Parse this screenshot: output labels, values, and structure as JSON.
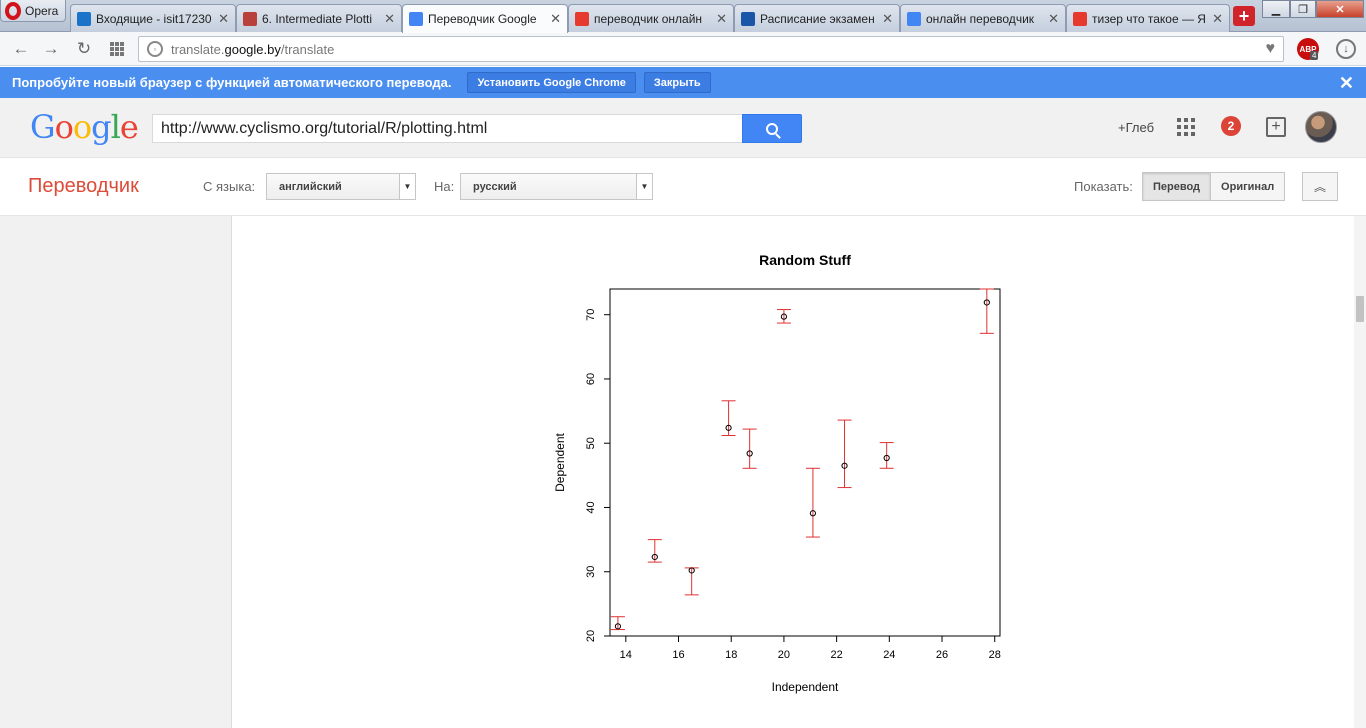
{
  "browser": {
    "opera_label": "Opera",
    "tabs": [
      {
        "title": "Входящие - isit17230",
        "icon": "mail-icon",
        "color": "#1a73c8"
      },
      {
        "title": "6. Intermediate Plotti",
        "icon": "link-icon",
        "color": "#b9413b"
      },
      {
        "title": "Переводчик Google",
        "icon": "google-translate-icon",
        "color": "#4285f4"
      },
      {
        "title": "переводчик онлайн",
        "icon": "yandex-icon",
        "color": "#e63a2e"
      },
      {
        "title": "Расписание экзамен",
        "icon": "schedule-site-icon",
        "color": "#1a56a8"
      },
      {
        "title": "онлайн переводчик",
        "icon": "google-g-icon",
        "color": "#4285f4"
      },
      {
        "title": "тизер что такое — Я",
        "icon": "yandex-icon",
        "color": "#e63a2e"
      }
    ],
    "url_prefix": "translate.",
    "url_domain": "google.by",
    "url_path": "/translate",
    "abp_label": "ABP",
    "abp_count": "4"
  },
  "infobar": {
    "text": "Попробуйте новый браузер с функцией автоматического перевода.",
    "install_label": "Установить Google Chrome",
    "close_label": "Закрыть"
  },
  "google": {
    "search_value": "http://www.cyclismo.org/tutorial/R/plotting.html",
    "user_label": "+Глеб",
    "notification_count": "2",
    "logo_letters": [
      {
        "ch": "G",
        "color": "#4285f4"
      },
      {
        "ch": "o",
        "color": "#ea4335"
      },
      {
        "ch": "o",
        "color": "#fbbc05"
      },
      {
        "ch": "g",
        "color": "#4285f4"
      },
      {
        "ch": "l",
        "color": "#34a853"
      },
      {
        "ch": "e",
        "color": "#ea4335"
      }
    ]
  },
  "translator": {
    "title": "Переводчик",
    "from_label": "С языка:",
    "from_value": "английский",
    "to_label": "На:",
    "to_value": "русский",
    "show_label": "Показать:",
    "translation_label": "Перевод",
    "original_label": "Оригинал"
  },
  "chart_data": {
    "type": "scatter",
    "title": "Random Stuff",
    "xlabel": "Independent",
    "ylabel": "Dependent",
    "xlim": [
      13.4,
      28.2
    ],
    "ylim": [
      20,
      74
    ],
    "xticks": [
      14,
      16,
      18,
      20,
      22,
      24,
      26,
      28
    ],
    "yticks": [
      20,
      30,
      40,
      50,
      60,
      70
    ],
    "point_color": "#000000",
    "errorbar_color": "#e03030",
    "points": [
      {
        "x": 13.7,
        "y": 21.5,
        "lo": 21.0,
        "hi": 23.0
      },
      {
        "x": 15.1,
        "y": 32.3,
        "lo": 31.5,
        "hi": 35.0
      },
      {
        "x": 16.5,
        "y": 30.2,
        "lo": 26.4,
        "hi": 30.6
      },
      {
        "x": 17.9,
        "y": 52.4,
        "lo": 51.2,
        "hi": 56.6
      },
      {
        "x": 18.7,
        "y": 48.4,
        "lo": 46.1,
        "hi": 52.2
      },
      {
        "x": 20.0,
        "y": 69.7,
        "lo": 68.7,
        "hi": 70.8
      },
      {
        "x": 21.1,
        "y": 39.1,
        "lo": 35.4,
        "hi": 46.1
      },
      {
        "x": 22.3,
        "y": 46.5,
        "lo": 43.1,
        "hi": 53.6
      },
      {
        "x": 23.9,
        "y": 47.7,
        "lo": 46.1,
        "hi": 50.1
      },
      {
        "x": 27.7,
        "y": 71.9,
        "lo": 67.1,
        "hi": 74.0
      }
    ]
  }
}
